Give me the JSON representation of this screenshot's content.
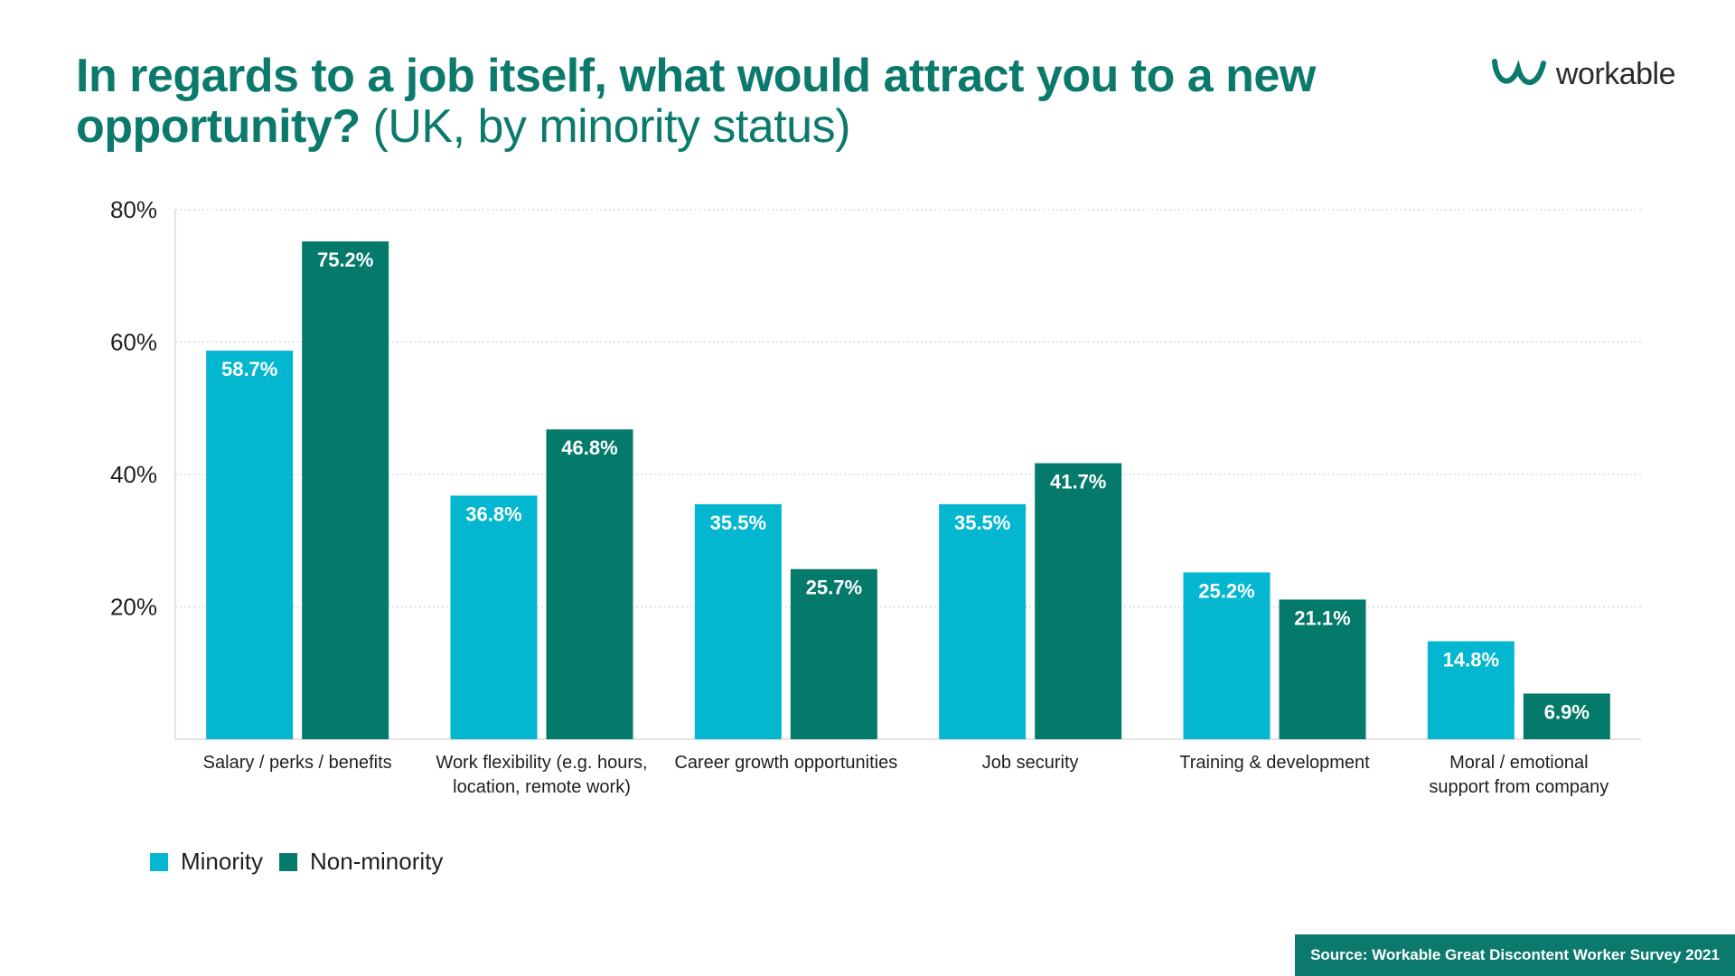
{
  "header": {
    "title_bold": "In regards to a job itself, what would attract you to a new opportunity?",
    "title_light": "(UK, by minority status)"
  },
  "logo": {
    "text": "workable",
    "icon": "workable-logo-icon"
  },
  "source": "Source: Workable Great Discontent Worker Survey 2021",
  "colors": {
    "minority": "#03b7d0",
    "non_minority": "#047a6b",
    "title": "#0b7a6c"
  },
  "chart_data": {
    "type": "bar",
    "categories": [
      [
        "Salary / perks / benefits"
      ],
      [
        "Work flexibility (e.g. hours,",
        "location, remote work)"
      ],
      [
        "Career growth opportunities"
      ],
      [
        "Job security"
      ],
      [
        "Training & development"
      ],
      [
        "Moral / emotional",
        "support from company"
      ]
    ],
    "series": [
      {
        "name": "Minority",
        "color": "#03b7d0",
        "values": [
          58.7,
          36.8,
          35.5,
          35.5,
          25.2,
          14.8
        ],
        "labels": [
          "58.7%",
          "36.8%",
          "35.5%",
          "35.5%",
          "25.2%",
          "14.8%"
        ]
      },
      {
        "name": "Non-minority",
        "color": "#047a6b",
        "values": [
          75.2,
          46.8,
          25.7,
          41.7,
          21.1,
          6.9
        ],
        "labels": [
          "75.2%",
          "46.8%",
          "25.7%",
          "41.7%",
          "21.1%",
          "6.9%"
        ]
      }
    ],
    "yticks": [
      20,
      40,
      60,
      80
    ],
    "ytick_labels": [
      "20%",
      "40%",
      "60%",
      "80%"
    ],
    "ylim": [
      0,
      80
    ],
    "grid": true,
    "legend_position": "bottom-left"
  }
}
